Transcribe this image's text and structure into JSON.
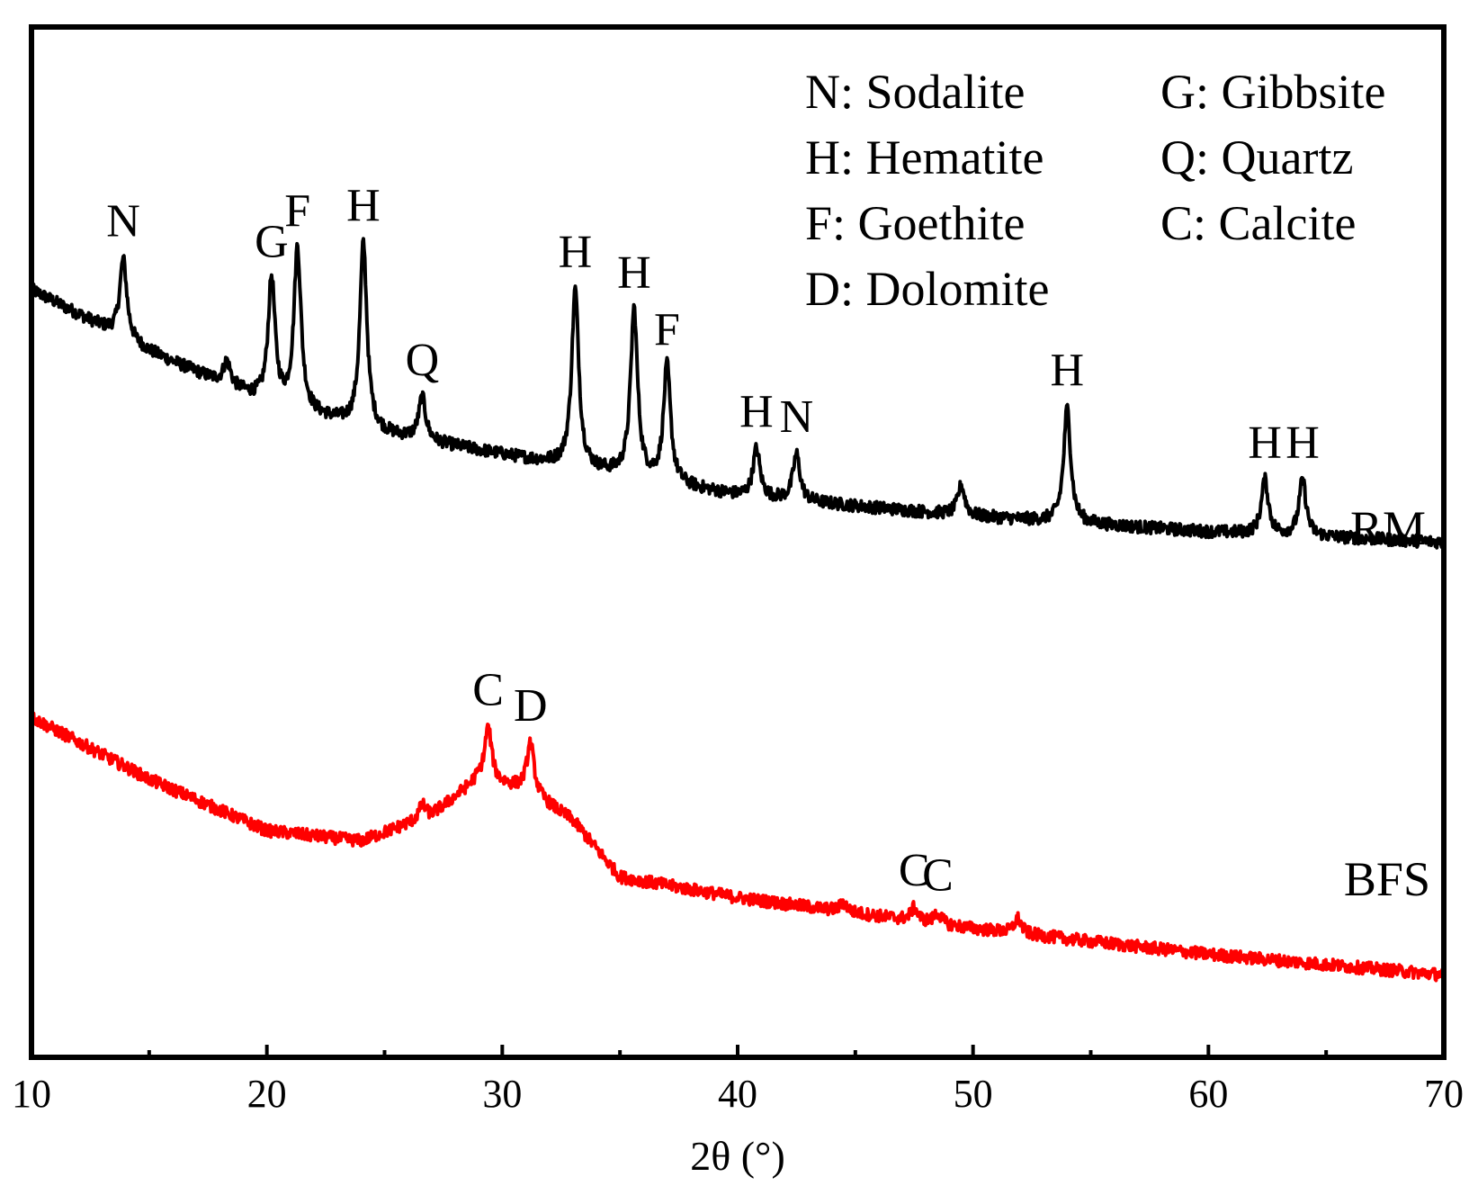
{
  "chart_data": {
    "type": "line",
    "title": "",
    "xlabel": "2θ (°)",
    "ylabel": "",
    "xlim": [
      10,
      70
    ],
    "x_ticks": [
      10,
      20,
      30,
      40,
      50,
      60,
      70
    ],
    "x_tick_labels": [
      "10",
      "20",
      "30",
      "40",
      "50",
      "60",
      "70"
    ],
    "x_minor_ticks": [
      15,
      25,
      35,
      45,
      55,
      65
    ],
    "y_axis_ticks_shown": false,
    "grid": false,
    "legend_position": "top-right",
    "legend": [
      "N: Sodalite",
      "G: Gibbsite",
      "H: Hematite",
      "Q: Quartz",
      "F: Goethite",
      "C: Calcite",
      "D: Dolomite"
    ],
    "colors": {
      "RM": "#000000",
      "BFS": "#ff0000"
    },
    "series": [
      {
        "name": "RM",
        "baseline": [
          [
            10,
            0.745
          ],
          [
            15,
            0.685
          ],
          [
            20,
            0.635
          ],
          [
            25,
            0.605
          ],
          [
            30,
            0.585
          ],
          [
            35,
            0.565
          ],
          [
            40,
            0.545
          ],
          [
            50,
            0.525
          ],
          [
            60,
            0.51
          ],
          [
            70,
            0.5
          ]
        ],
        "peaks": [
          {
            "x": 13.9,
            "y": 0.775,
            "label": "N"
          },
          {
            "x": 18.3,
            "y": 0.675,
            "label": ""
          },
          {
            "x": 20.2,
            "y": 0.755,
            "label": "G"
          },
          {
            "x": 21.3,
            "y": 0.785,
            "label": "F"
          },
          {
            "x": 24.1,
            "y": 0.79,
            "label": "H"
          },
          {
            "x": 26.6,
            "y": 0.64,
            "label": "Q"
          },
          {
            "x": 33.1,
            "y": 0.745,
            "label": "H"
          },
          {
            "x": 35.6,
            "y": 0.725,
            "label": "H"
          },
          {
            "x": 37.0,
            "y": 0.67,
            "label": "F"
          },
          {
            "x": 40.8,
            "y": 0.59,
            "label": "H"
          },
          {
            "x": 42.5,
            "y": 0.585,
            "label": "N"
          },
          {
            "x": 49.5,
            "y": 0.555,
            "label": ""
          },
          {
            "x": 54.0,
            "y": 0.63,
            "label": "H"
          },
          {
            "x": 62.4,
            "y": 0.56,
            "label": "H"
          },
          {
            "x": 64.0,
            "y": 0.56,
            "label": "H"
          }
        ]
      },
      {
        "name": "BFS",
        "baseline": [
          [
            10,
            0.33
          ],
          [
            15,
            0.27
          ],
          [
            20,
            0.22
          ],
          [
            24,
            0.21
          ],
          [
            27,
            0.235
          ],
          [
            29,
            0.27
          ],
          [
            31,
            0.26
          ],
          [
            33,
            0.23
          ],
          [
            35,
            0.175
          ],
          [
            40,
            0.155
          ],
          [
            50,
            0.125
          ],
          [
            60,
            0.1
          ],
          [
            70,
            0.08
          ]
        ],
        "peaks": [
          {
            "x": 26.6,
            "y": 0.245,
            "label": ""
          },
          {
            "x": 29.4,
            "y": 0.32,
            "label": "C"
          },
          {
            "x": 31.2,
            "y": 0.305,
            "label": "D"
          },
          {
            "x": 44.5,
            "y": 0.15,
            "label": ""
          },
          {
            "x": 47.5,
            "y": 0.145,
            "label": "C"
          },
          {
            "x": 48.5,
            "y": 0.14,
            "label": "C"
          },
          {
            "x": 51.9,
            "y": 0.135,
            "label": ""
          }
        ]
      }
    ]
  }
}
